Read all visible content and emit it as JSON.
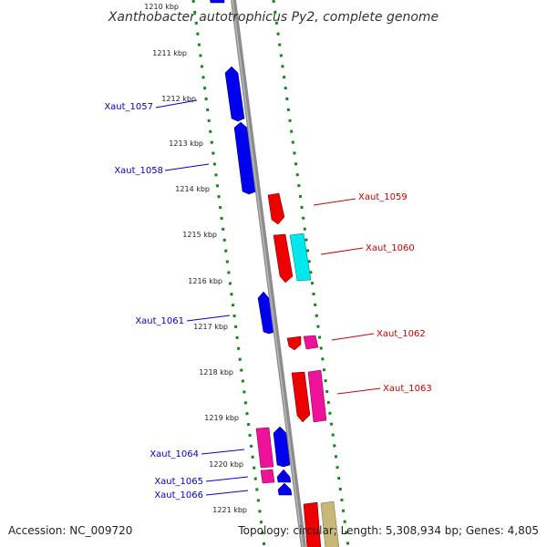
{
  "title": "Xanthobacter autotrophicus Py2, complete genome",
  "footer": {
    "accession": "Accession: NC_009720",
    "topology": "Topology: circular; Length: 5,308,934 bp; Genes: 4,805"
  },
  "ticks": [
    "1210 kbp",
    "1211 kbp",
    "1212 kbp",
    "1213 kbp",
    "1214 kbp",
    "1215 kbp",
    "1216 kbp",
    "1217 kbp",
    "1218 kbp",
    "1219 kbp",
    "1220 kbp",
    "1221 kbp"
  ],
  "colors": {
    "reverse_strand_gene": "#0000ee",
    "forward_strand_gene": "#ee0000",
    "magenta_gene": "#ee1199",
    "cyan_gene": "#00e8ee",
    "khaki_gene": "#c8b878",
    "backbone": "#8c8c8c",
    "dotted_track": "#118811"
  },
  "genes": [
    {
      "name": "Xaut_1057",
      "strand": "reverse"
    },
    {
      "name": "Xaut_1058",
      "strand": "reverse"
    },
    {
      "name": "Xaut_1059",
      "strand": "forward"
    },
    {
      "name": "Xaut_1060",
      "strand": "forward"
    },
    {
      "name": "Xaut_1061",
      "strand": "reverse"
    },
    {
      "name": "Xaut_1062",
      "strand": "forward"
    },
    {
      "name": "Xaut_1063",
      "strand": "forward"
    },
    {
      "name": "Xaut_1064",
      "strand": "reverse"
    },
    {
      "name": "Xaut_1065",
      "strand": "reverse"
    },
    {
      "name": "Xaut_1066",
      "strand": "reverse"
    }
  ]
}
